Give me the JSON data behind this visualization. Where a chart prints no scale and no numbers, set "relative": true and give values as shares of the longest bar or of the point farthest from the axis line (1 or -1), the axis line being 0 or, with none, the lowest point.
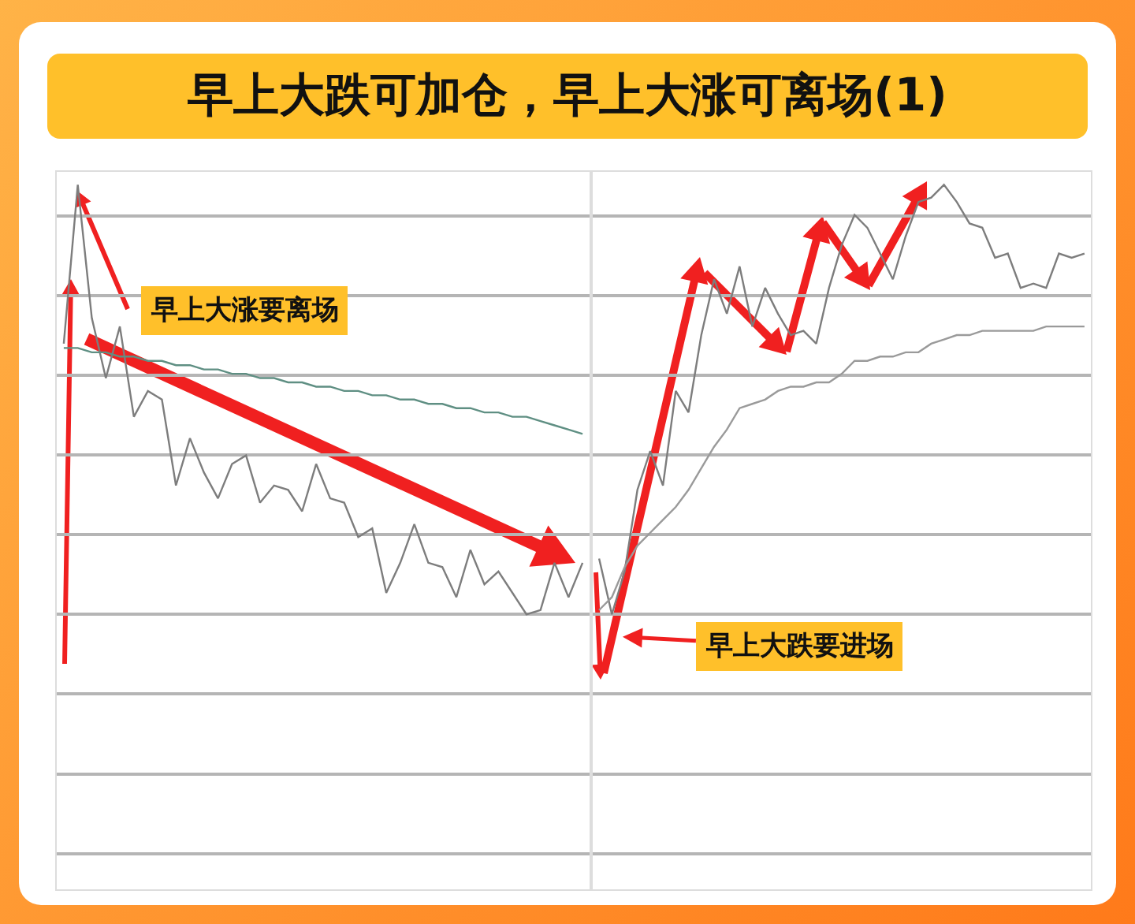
{
  "chart_data": [
    {
      "type": "line",
      "title": "早上大跌可加仓，早上大涨可离场(1)",
      "relative": true,
      "grid": "y",
      "annotations": [
        "早上大涨要离场"
      ],
      "categories": [
        null,
        null,
        null,
        null,
        null,
        null,
        null,
        null,
        null,
        null,
        null,
        null,
        null,
        null,
        null,
        null,
        null,
        null,
        null,
        null,
        null,
        null,
        null,
        null,
        null,
        null,
        null,
        null,
        null,
        null,
        null,
        null,
        null,
        null,
        null,
        null,
        null,
        null
      ],
      "series": [
        {
          "color": "#7d7d7d",
          "values": [
            0.63,
            1,
            0.69,
            0.55,
            0.67,
            0.46,
            0.52,
            0.5,
            0.3,
            0.41,
            0.33,
            0.27,
            0.35,
            0.37,
            0.26,
            0.3,
            0.29,
            0.24,
            0.35,
            0.27,
            0.26,
            0.18,
            0.2,
            0.05,
            0.12,
            0.21,
            0.12,
            0.11,
            0.04,
            0.15,
            0.07,
            0.1,
            0.05,
            0,
            0.01,
            0.12,
            0.04,
            0.12
          ]
        },
        {
          "color": "#5f8f83",
          "values": [
            0.62,
            0.62,
            0.61,
            0.61,
            0.6,
            0.6,
            0.59,
            0.59,
            0.58,
            0.58,
            0.57,
            0.57,
            0.56,
            0.56,
            0.55,
            0.55,
            0.54,
            0.54,
            0.53,
            0.53,
            0.52,
            0.52,
            0.51,
            0.51,
            0.5,
            0.5,
            0.49,
            0.49,
            0.48,
            0.48,
            0.47,
            0.47,
            0.46,
            0.46,
            0.45,
            0.44,
            0.43,
            0.42
          ]
        }
      ]
    },
    {
      "type": "line",
      "relative": true,
      "grid": "y",
      "annotations": [
        "早上大跌要进场"
      ],
      "categories": [
        null,
        null,
        null,
        null,
        null,
        null,
        null,
        null,
        null,
        null,
        null,
        null,
        null,
        null,
        null,
        null,
        null,
        null,
        null,
        null,
        null,
        null,
        null,
        null,
        null,
        null,
        null,
        null,
        null,
        null,
        null,
        null,
        null,
        null,
        null,
        null,
        null,
        null,
        null
      ],
      "series": [
        {
          "color": "#7d7d7d",
          "values": [
            0.13,
            0,
            0.1,
            0.29,
            0.38,
            0.3,
            0.52,
            0.47,
            0.65,
            0.78,
            0.7,
            0.81,
            0.67,
            0.76,
            0.7,
            0.65,
            0.66,
            0.63,
            0.76,
            0.86,
            0.93,
            0.9,
            0.84,
            0.78,
            0.88,
            0.96,
            0.97,
            1,
            0.96,
            0.91,
            0.9,
            0.83,
            0.84,
            0.76,
            0.77,
            0.76,
            0.84,
            0.83,
            0.84
          ]
        },
        {
          "color": "#9a9a9a",
          "values": [
            0.01,
            0.04,
            0.11,
            0.16,
            0.19,
            0.22,
            0.25,
            0.29,
            0.34,
            0.39,
            0.43,
            0.48,
            0.49,
            0.5,
            0.52,
            0.53,
            0.53,
            0.54,
            0.54,
            0.56,
            0.59,
            0.59,
            0.6,
            0.6,
            0.61,
            0.61,
            0.63,
            0.64,
            0.65,
            0.65,
            0.66,
            0.66,
            0.66,
            0.66,
            0.66,
            0.67,
            0.67,
            0.67,
            0.67
          ]
        }
      ]
    }
  ]
}
